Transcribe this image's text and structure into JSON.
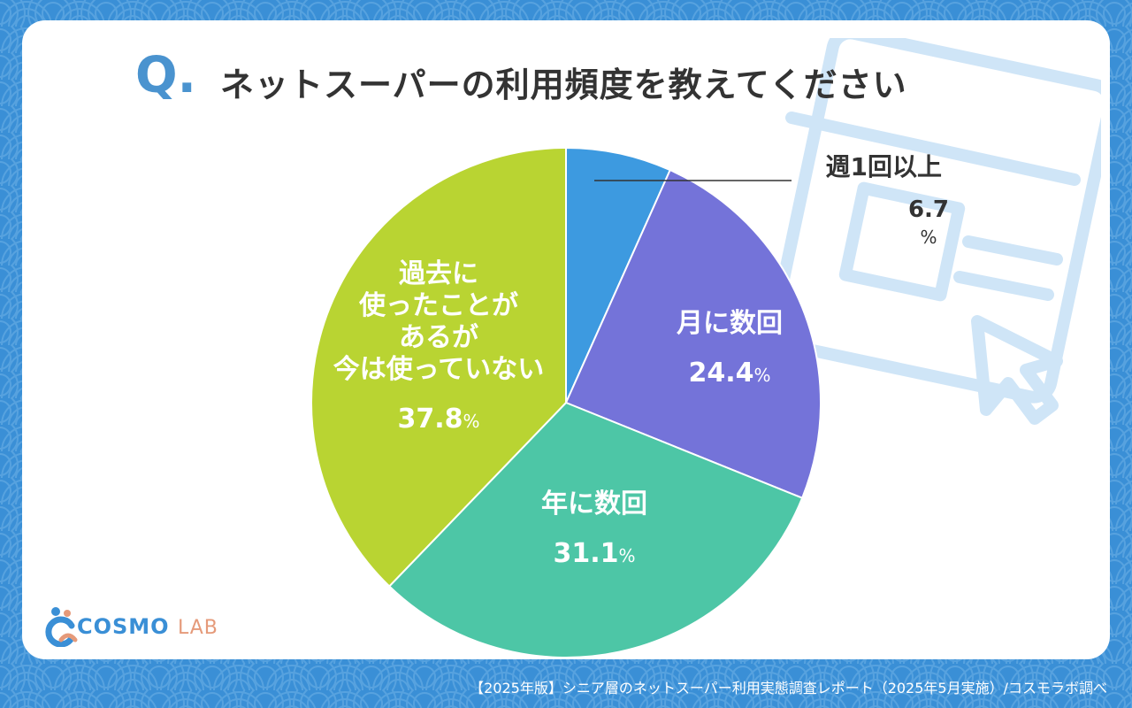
{
  "question": {
    "mark": "Q.",
    "text": "ネットスーパーの利用頻度を教えてください"
  },
  "logo": {
    "cosmo": "COSMO",
    "lab": "LAB"
  },
  "footer": "【2025年版】シニア層のネットスーパー利用実態調査レポート（2025年5月実施）/コスモラボ調べ",
  "colors": {
    "background": "#3a8fd6",
    "weekly": "#3d9ae0",
    "monthly": "#7473d9",
    "yearly": "#4dc6a6",
    "past": "#b9d432"
  },
  "chart_data": {
    "type": "pie",
    "start_angle_deg": 0,
    "direction": "clockwise",
    "slices": [
      {
        "label": "週1回以上",
        "value": 6.7,
        "value_text": "6.7",
        "unit": "%",
        "color": "#3d9ae0"
      },
      {
        "label": "月に数回",
        "value": 24.4,
        "value_text": "24.4",
        "unit": "%",
        "color": "#7473d9"
      },
      {
        "label": "年に数回",
        "value": 31.1,
        "value_text": "31.1",
        "unit": "%",
        "color": "#4dc6a6"
      },
      {
        "label": "過去に\n使ったことが\nあるが\n今は使っていない",
        "value": 37.8,
        "value_text": "37.8",
        "unit": "%",
        "color": "#b9d432"
      }
    ]
  }
}
